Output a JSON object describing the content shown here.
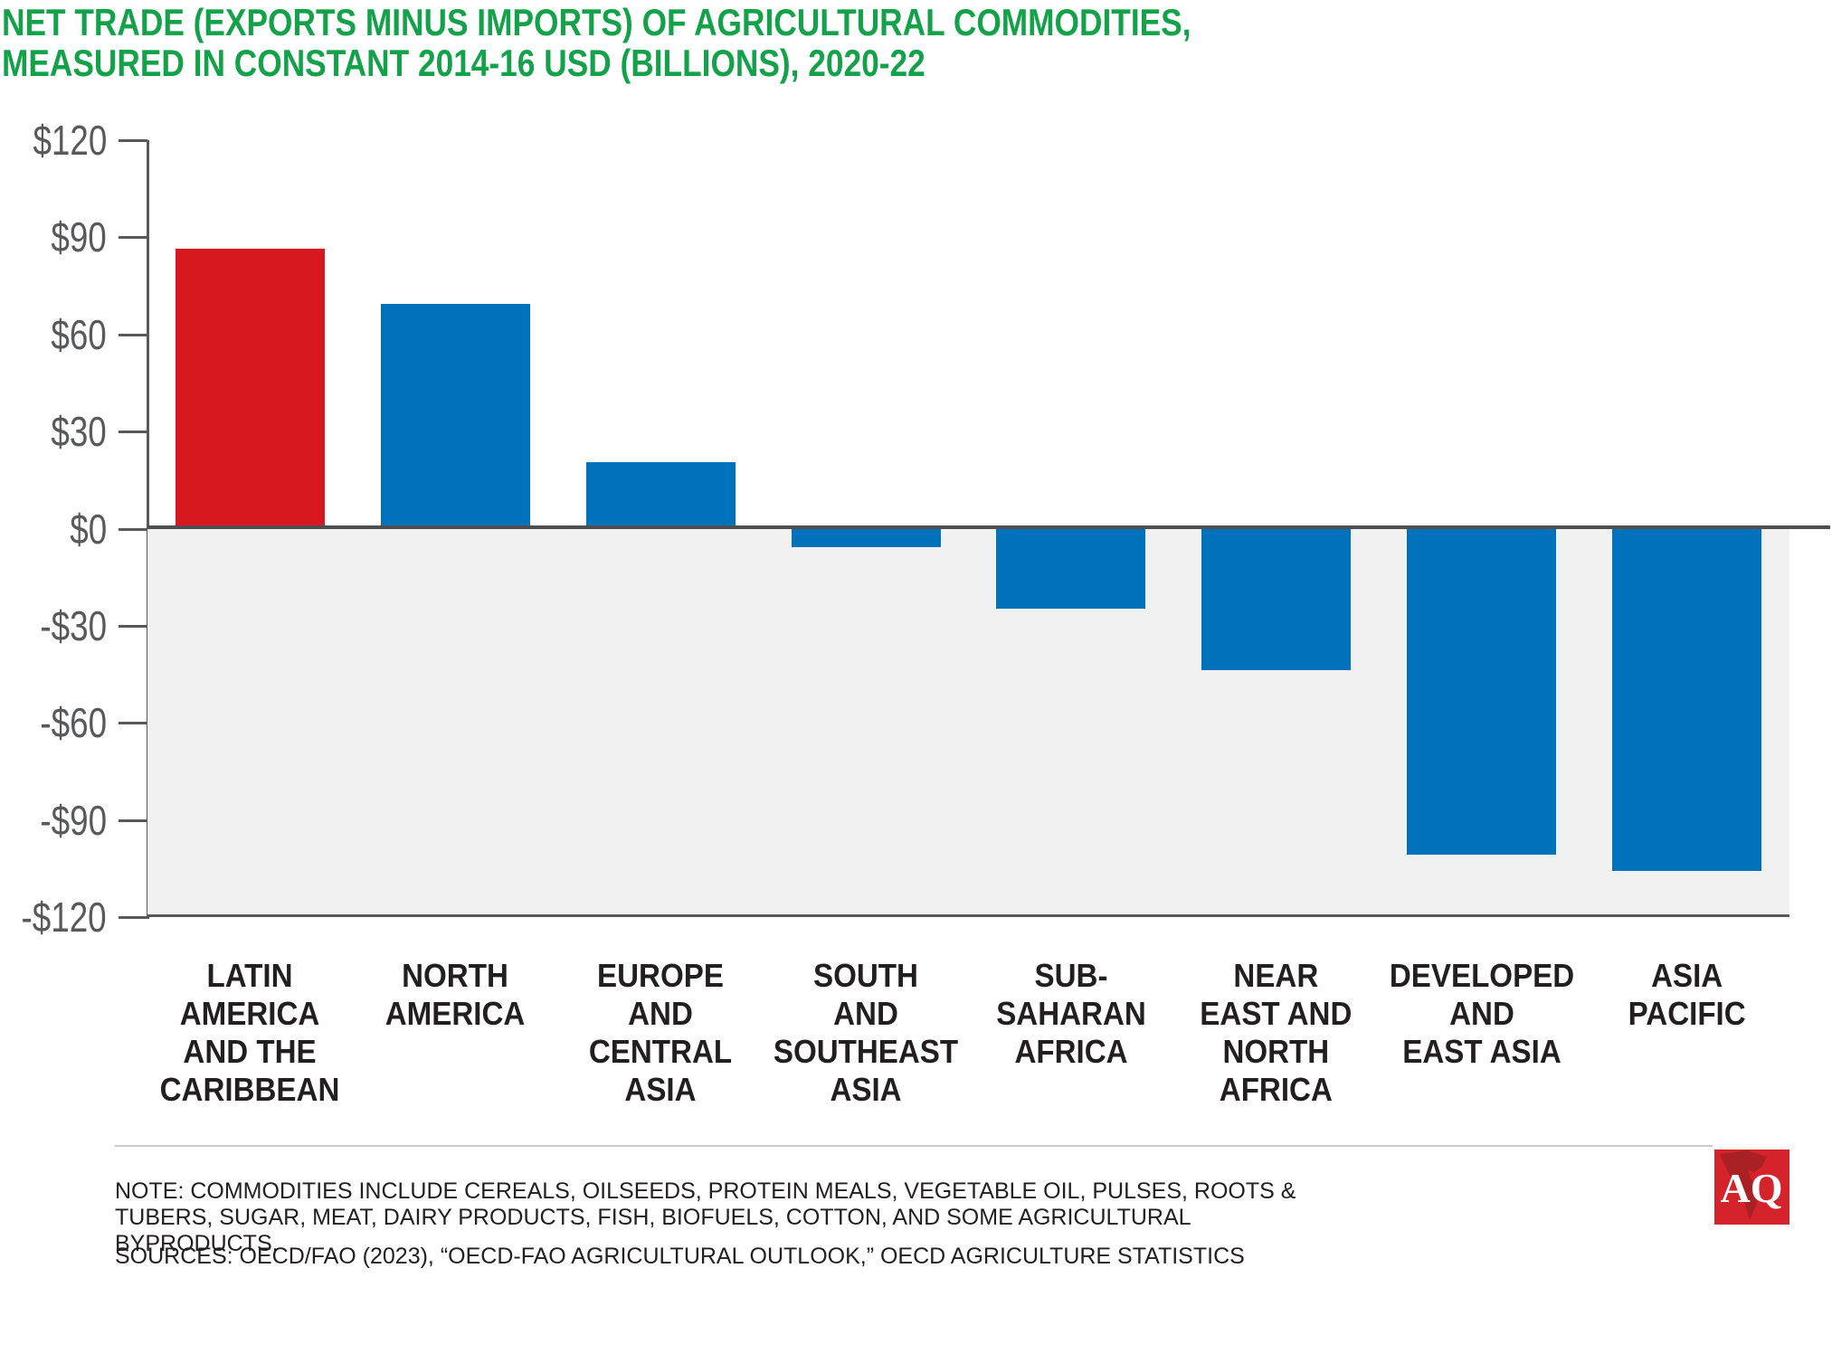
{
  "title": {
    "line1": "NET TRADE (EXPORTS MINUS IMPORTS) OF AGRICULTURAL COMMODITIES,",
    "line2": "MEASURED IN CONSTANT 2014-16 USD (BILLIONS), 2020-22"
  },
  "chart_data": {
    "type": "bar",
    "title": "NET TRADE (EXPORTS MINUS IMPORTS) OF AGRICULTURAL COMMODITIES, MEASURED IN CONSTANT 2014-16 USD (BILLIONS), 2020-22",
    "categories": [
      "LATIN AMERICA AND THE CARIBBEAN",
      "NORTH AMERICA",
      "EUROPE AND CENTRAL ASIA",
      "SOUTH AND SOUTHEAST ASIA",
      "SUB-SAHARAN AFRICA",
      "NEAR EAST AND NORTH AFRICA",
      "DEVELOPED AND EAST ASIA",
      "ASIA PACIFIC"
    ],
    "category_label_lines": [
      [
        "LATIN",
        "AMERICA",
        "AND THE",
        "CARIBBEAN"
      ],
      [
        "NORTH",
        "AMERICA"
      ],
      [
        "EUROPE",
        "AND",
        "CENTRAL",
        "ASIA"
      ],
      [
        "SOUTH",
        "AND",
        "SOUTHEAST",
        "ASIA"
      ],
      [
        "SUB-",
        "SAHARAN",
        "AFRICA"
      ],
      [
        "NEAR",
        "EAST AND",
        "NORTH",
        "AFRICA"
      ],
      [
        "DEVELOPED",
        "AND",
        "EAST ASIA"
      ],
      [
        "ASIA",
        "PACIFIC"
      ]
    ],
    "values": [
      86,
      69,
      20,
      -6,
      -25,
      -44,
      -101,
      -106
    ],
    "unit": "USD billions (constant 2014-16)",
    "ylim": [
      -120,
      120
    ],
    "ytick_step": 30,
    "yticklabels": [
      "$120",
      "$90",
      "$60",
      "$30",
      "$0",
      "-$30",
      "-$60",
      "-$90",
      "-$120"
    ],
    "grid": false,
    "legend": false,
    "highlight_index": 0,
    "colors": {
      "highlight": "#D7191F",
      "default": "#0072BB",
      "negative_region_fill": "#F1F1F2",
      "zero_line": "#4D4E50",
      "axis": "#58595B",
      "title_green": "#13A24A"
    }
  },
  "footer": {
    "note": "NOTE: COMMODITIES INCLUDE CEREALS, OILSEEDS, PROTEIN MEALS, VEGETABLE OIL, PULSES, ROOTS & TUBERS, SUGAR, MEAT, DAIRY PRODUCTS, FISH, BIOFUELS, COTTON, AND SOME AGRICULTURAL BYPRODUCTS.",
    "sources": "SOURCES: OECD/FAO (2023), “OECD-FAO AGRICULTURAL OUTLOOK,” OECD AGRICULTURE STATISTICS"
  },
  "logo": {
    "text": "AQ",
    "bg_color": "#D5232B",
    "map_color": "#A92025",
    "text_color": "#FFFFFF"
  }
}
